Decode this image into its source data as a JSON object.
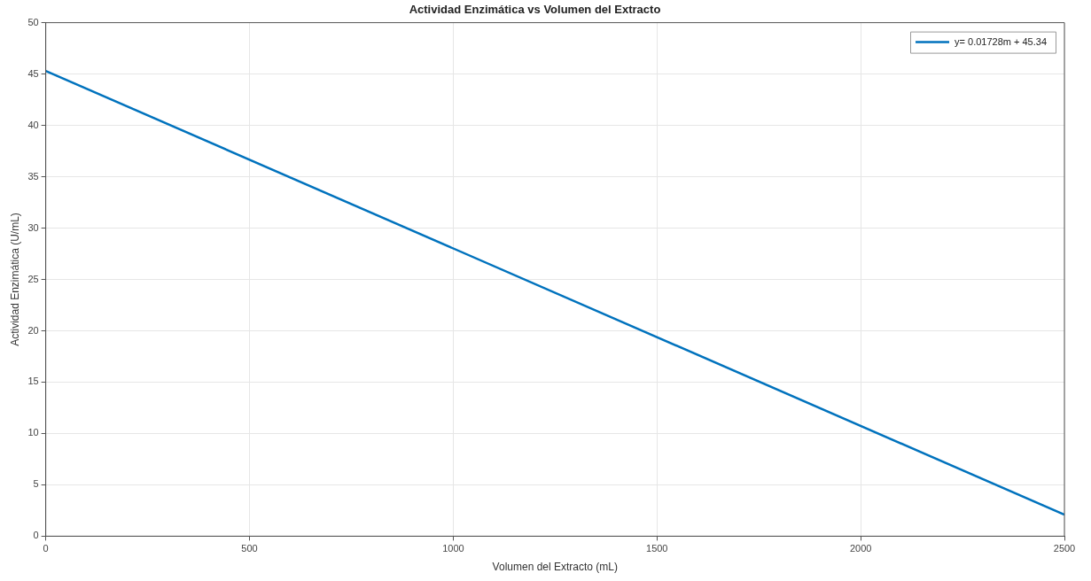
{
  "chart_data": {
    "type": "line",
    "title": "Actividad Enzimática vs Volumen del Extracto",
    "xlabel": "Volumen del Extracto (mL)",
    "ylabel": "Actividad Enzimática (U/mL)",
    "x": [
      0,
      2500
    ],
    "series": [
      {
        "name": "y= 0.01728m + 45.34",
        "color": "#0072bd",
        "values": [
          45.3,
          2.1
        ]
      }
    ],
    "xlim": [
      0,
      2500
    ],
    "xticks": [
      0,
      500,
      1000,
      1500,
      2000,
      2500
    ],
    "ylim": [
      0,
      50
    ],
    "yticks": [
      0,
      5,
      10,
      15,
      20,
      25,
      30,
      35,
      40,
      45,
      50
    ],
    "grid": true,
    "legend": "top right",
    "marker": "none",
    "line_style": "solid"
  }
}
